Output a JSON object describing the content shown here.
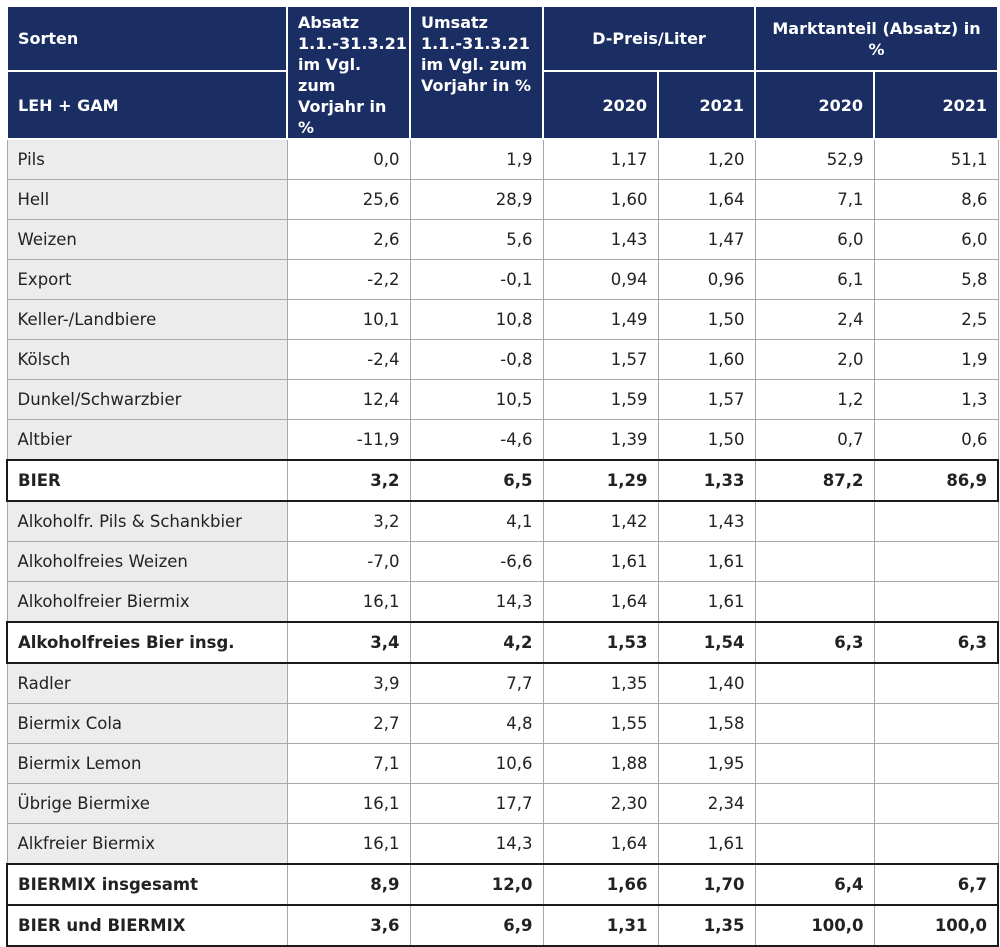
{
  "header": {
    "sorten": "Sorten",
    "leh": "LEH + GAM",
    "absatz": [
      "Absatz",
      "1.1.-31.3.21",
      "im Vgl. zum",
      "Vorjahr in %"
    ],
    "umsatz": [
      "Umsatz",
      "1.1.-31.3.21",
      "im Vgl. zum",
      "Vorjahr in %"
    ],
    "dpreis": "D-Preis/Liter",
    "marktanteil": "Marktanteil (Absatz) in %",
    "y2020a": "2020",
    "y2021a": "2021",
    "y2020b": "2020",
    "y2021b": "2021"
  },
  "rows": [
    {
      "name": "Pils",
      "absatz": "0,0",
      "umsatz": "1,9",
      "p2020": "1,17",
      "p2021": "1,20",
      "m2020": "52,9",
      "m2021": "51,1",
      "total": false
    },
    {
      "name": "Hell",
      "absatz": "25,6",
      "umsatz": "28,9",
      "p2020": "1,60",
      "p2021": "1,64",
      "m2020": "7,1",
      "m2021": "8,6",
      "total": false
    },
    {
      "name": "Weizen",
      "absatz": "2,6",
      "umsatz": "5,6",
      "p2020": "1,43",
      "p2021": "1,47",
      "m2020": "6,0",
      "m2021": "6,0",
      "total": false
    },
    {
      "name": "Export",
      "absatz": "-2,2",
      "umsatz": "-0,1",
      "p2020": "0,94",
      "p2021": "0,96",
      "m2020": "6,1",
      "m2021": "5,8",
      "total": false
    },
    {
      "name": "Keller-/Landbiere",
      "absatz": "10,1",
      "umsatz": "10,8",
      "p2020": "1,49",
      "p2021": "1,50",
      "m2020": "2,4",
      "m2021": "2,5",
      "total": false
    },
    {
      "name": "Kölsch",
      "absatz": "-2,4",
      "umsatz": "-0,8",
      "p2020": "1,57",
      "p2021": "1,60",
      "m2020": "2,0",
      "m2021": "1,9",
      "total": false
    },
    {
      "name": "Dunkel/Schwarzbier",
      "absatz": "12,4",
      "umsatz": "10,5",
      "p2020": "1,59",
      "p2021": "1,57",
      "m2020": "1,2",
      "m2021": "1,3",
      "total": false
    },
    {
      "name": "Altbier",
      "absatz": "-11,9",
      "umsatz": "-4,6",
      "p2020": "1,39",
      "p2021": "1,50",
      "m2020": "0,7",
      "m2021": "0,6",
      "total": false
    },
    {
      "name": "BIER",
      "absatz": "3,2",
      "umsatz": "6,5",
      "p2020": "1,29",
      "p2021": "1,33",
      "m2020": "87,2",
      "m2021": "86,9",
      "total": true
    },
    {
      "name": "Alkoholfr. Pils & Schankbier",
      "absatz": "3,2",
      "umsatz": "4,1",
      "p2020": "1,42",
      "p2021": "1,43",
      "m2020": "",
      "m2021": "",
      "total": false
    },
    {
      "name": "Alkoholfreies Weizen",
      "absatz": "-7,0",
      "umsatz": "-6,6",
      "p2020": "1,61",
      "p2021": "1,61",
      "m2020": "",
      "m2021": "",
      "total": false
    },
    {
      "name": "Alkoholfreier Biermix",
      "absatz": "16,1",
      "umsatz": "14,3",
      "p2020": "1,64",
      "p2021": "1,61",
      "m2020": "",
      "m2021": "",
      "total": false
    },
    {
      "name": "Alkoholfreies Bier insg.",
      "absatz": "3,4",
      "umsatz": "4,2",
      "p2020": "1,53",
      "p2021": "1,54",
      "m2020": "6,3",
      "m2021": "6,3",
      "total": true
    },
    {
      "name": "Radler",
      "absatz": "3,9",
      "umsatz": "7,7",
      "p2020": "1,35",
      "p2021": "1,40",
      "m2020": "",
      "m2021": "",
      "total": false
    },
    {
      "name": "Biermix Cola",
      "absatz": "2,7",
      "umsatz": "4,8",
      "p2020": "1,55",
      "p2021": "1,58",
      "m2020": "",
      "m2021": "",
      "total": false
    },
    {
      "name": "Biermix Lemon",
      "absatz": "7,1",
      "umsatz": "10,6",
      "p2020": "1,88",
      "p2021": "1,95",
      "m2020": "",
      "m2021": "",
      "total": false
    },
    {
      "name": "Übrige Biermixe",
      "absatz": "16,1",
      "umsatz": "17,7",
      "p2020": "2,30",
      "p2021": "2,34",
      "m2020": "",
      "m2021": "",
      "total": false
    },
    {
      "name": "Alkfreier Biermix",
      "absatz": "16,1",
      "umsatz": "14,3",
      "p2020": "1,64",
      "p2021": "1,61",
      "m2020": "",
      "m2021": "",
      "total": false
    },
    {
      "name": "BIERMIX insgesamt",
      "absatz": "8,9",
      "umsatz": "12,0",
      "p2020": "1,66",
      "p2021": "1,70",
      "m2020": "6,4",
      "m2021": "6,7",
      "total": true
    },
    {
      "name": "BIER und BIERMIX",
      "absatz": "3,6",
      "umsatz": "6,9",
      "p2020": "1,31",
      "p2021": "1,35",
      "m2020": "100,0",
      "m2021": "100,0",
      "total": true
    }
  ]
}
